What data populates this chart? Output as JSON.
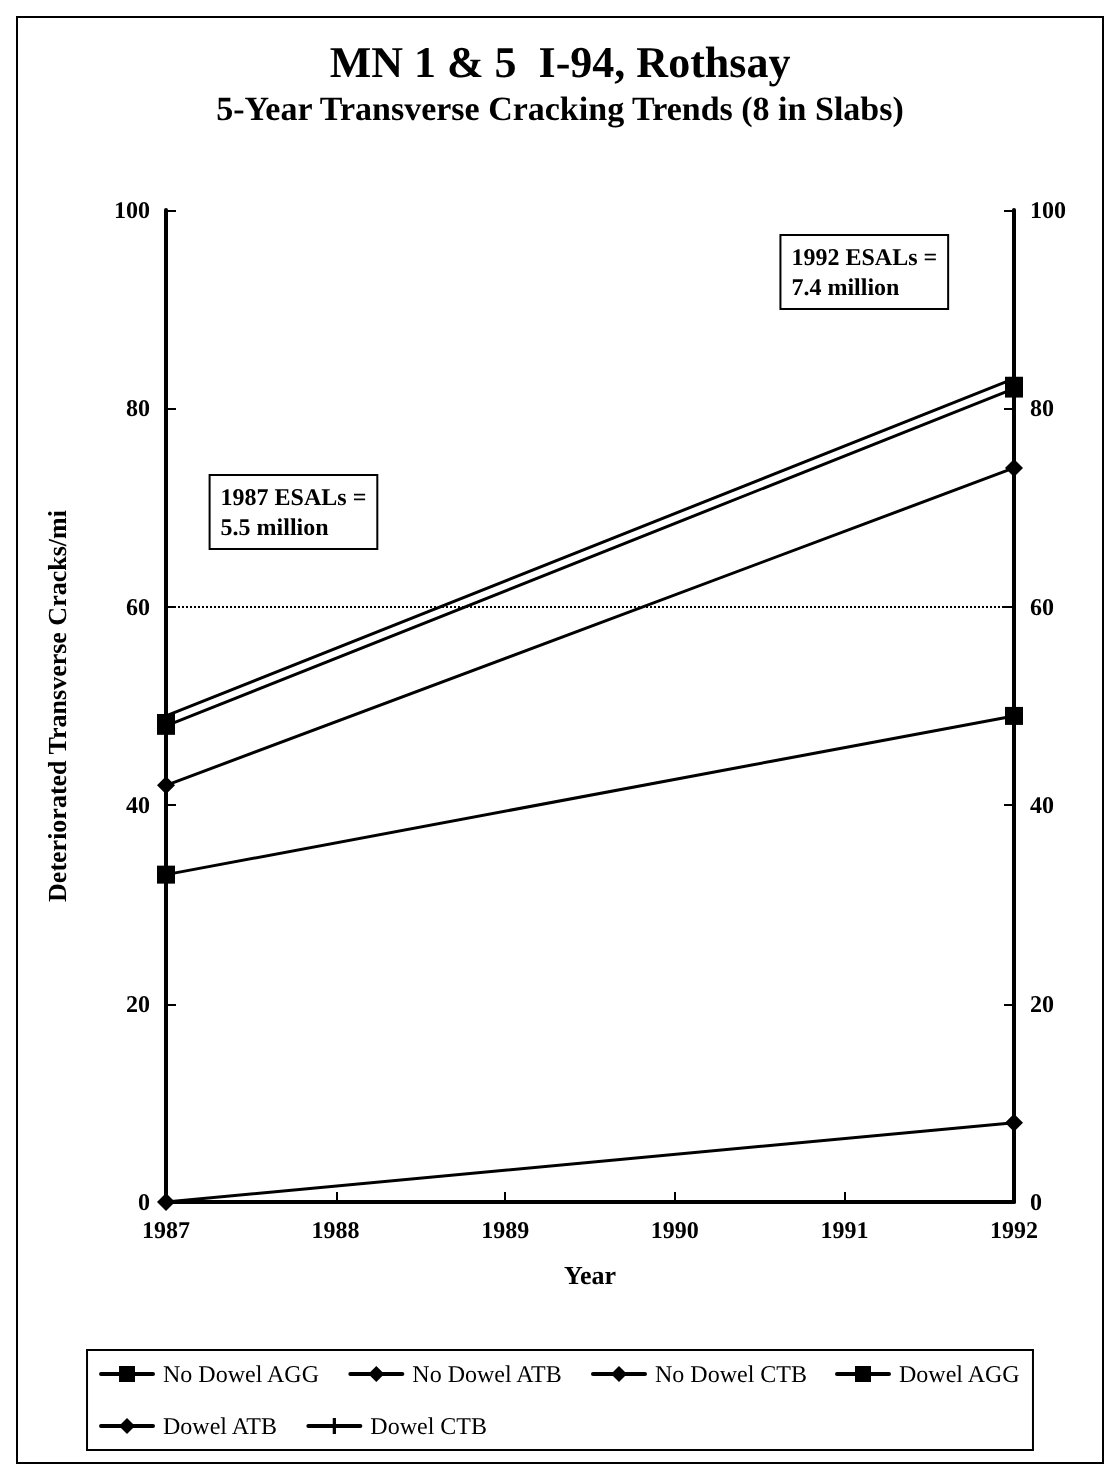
{
  "chart_data": {
    "type": "line",
    "title": "MN 1 & 5  I-94, Rothsay",
    "subtitle": "5-Year Transverse Cracking Trends (8 in Slabs)",
    "xlabel": "Year",
    "ylabel": "Deteriorated Transverse Cracks/mi",
    "x": [
      1987,
      1992
    ],
    "xlim": [
      1987,
      1992
    ],
    "xticks": [
      1987,
      1988,
      1989,
      1990,
      1991,
      1992
    ],
    "ylim": [
      0,
      100
    ],
    "yticks": [
      0,
      20,
      40,
      60,
      80,
      100
    ],
    "y2lim": [
      0,
      100
    ],
    "y2ticks": [
      0,
      20,
      40,
      60,
      80,
      100
    ],
    "series": [
      {
        "name": "No Dowel AGG",
        "color": "#000000",
        "marker": "square",
        "values": [
          33,
          49
        ]
      },
      {
        "name": "No Dowel ATB",
        "color": "#000000",
        "marker": "diamond",
        "values": [
          42,
          74
        ]
      },
      {
        "name": "No Dowel CTB",
        "color": "#000000",
        "marker": "diamond",
        "values": [
          0,
          8
        ]
      },
      {
        "name": "Dowel AGG",
        "color": "#000000",
        "marker": "square",
        "values": [
          48,
          82
        ]
      },
      {
        "name": "Dowel ATB",
        "color": "#000000",
        "marker": "diamond",
        "values": [
          null,
          null
        ]
      },
      {
        "name": "Dowel CTB",
        "color": "#000000",
        "marker": "cross",
        "values": [
          49,
          83
        ]
      }
    ],
    "ref_lines": [
      {
        "axis": "y",
        "value": 60,
        "line_style": "dotted",
        "color": "#000000"
      }
    ],
    "annotations": [
      "1987 ESALs =\n5.5 million",
      "1992 ESALs =\n7.4 million"
    ],
    "legend": "bottom",
    "grid": false,
    "line_style": "solid"
  }
}
